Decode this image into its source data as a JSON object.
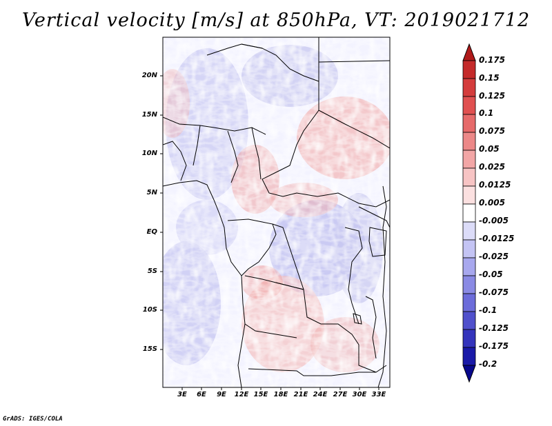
{
  "title": "Vertical velocity [m/s] at 850hPa, VT: 2019021712",
  "credit": "GrADS: IGES/COLA",
  "map": {
    "lat_labels": [
      "20N",
      "15N",
      "10N",
      "5N",
      "EQ",
      "5S",
      "10S",
      "15S"
    ],
    "lon_labels": [
      "3E",
      "6E",
      "9E",
      "12E",
      "15E",
      "18E",
      "21E",
      "24E",
      "27E",
      "30E",
      "33E"
    ]
  },
  "colorbar": {
    "levels": [
      "0.175",
      "0.15",
      "0.125",
      "0.1",
      "0.075",
      "0.05",
      "0.025",
      "0.0125",
      "0.005",
      "-0.005",
      "-0.0125",
      "-0.025",
      "-0.05",
      "-0.075",
      "-0.1",
      "-0.125",
      "-0.175",
      "-0.2"
    ],
    "colors": [
      "#b01a1a",
      "#c42a2a",
      "#d43c3c",
      "#e05050",
      "#e66a6a",
      "#ec8888",
      "#f2a6a6",
      "#f7c4c4",
      "#fbe0e0",
      "#ffffff",
      "#dcdcf8",
      "#c4c4f4",
      "#a8a8ee",
      "#8a8ae4",
      "#6c6cda",
      "#5050cc",
      "#3434bc",
      "#1a1aa8",
      "#08088c"
    ]
  }
}
